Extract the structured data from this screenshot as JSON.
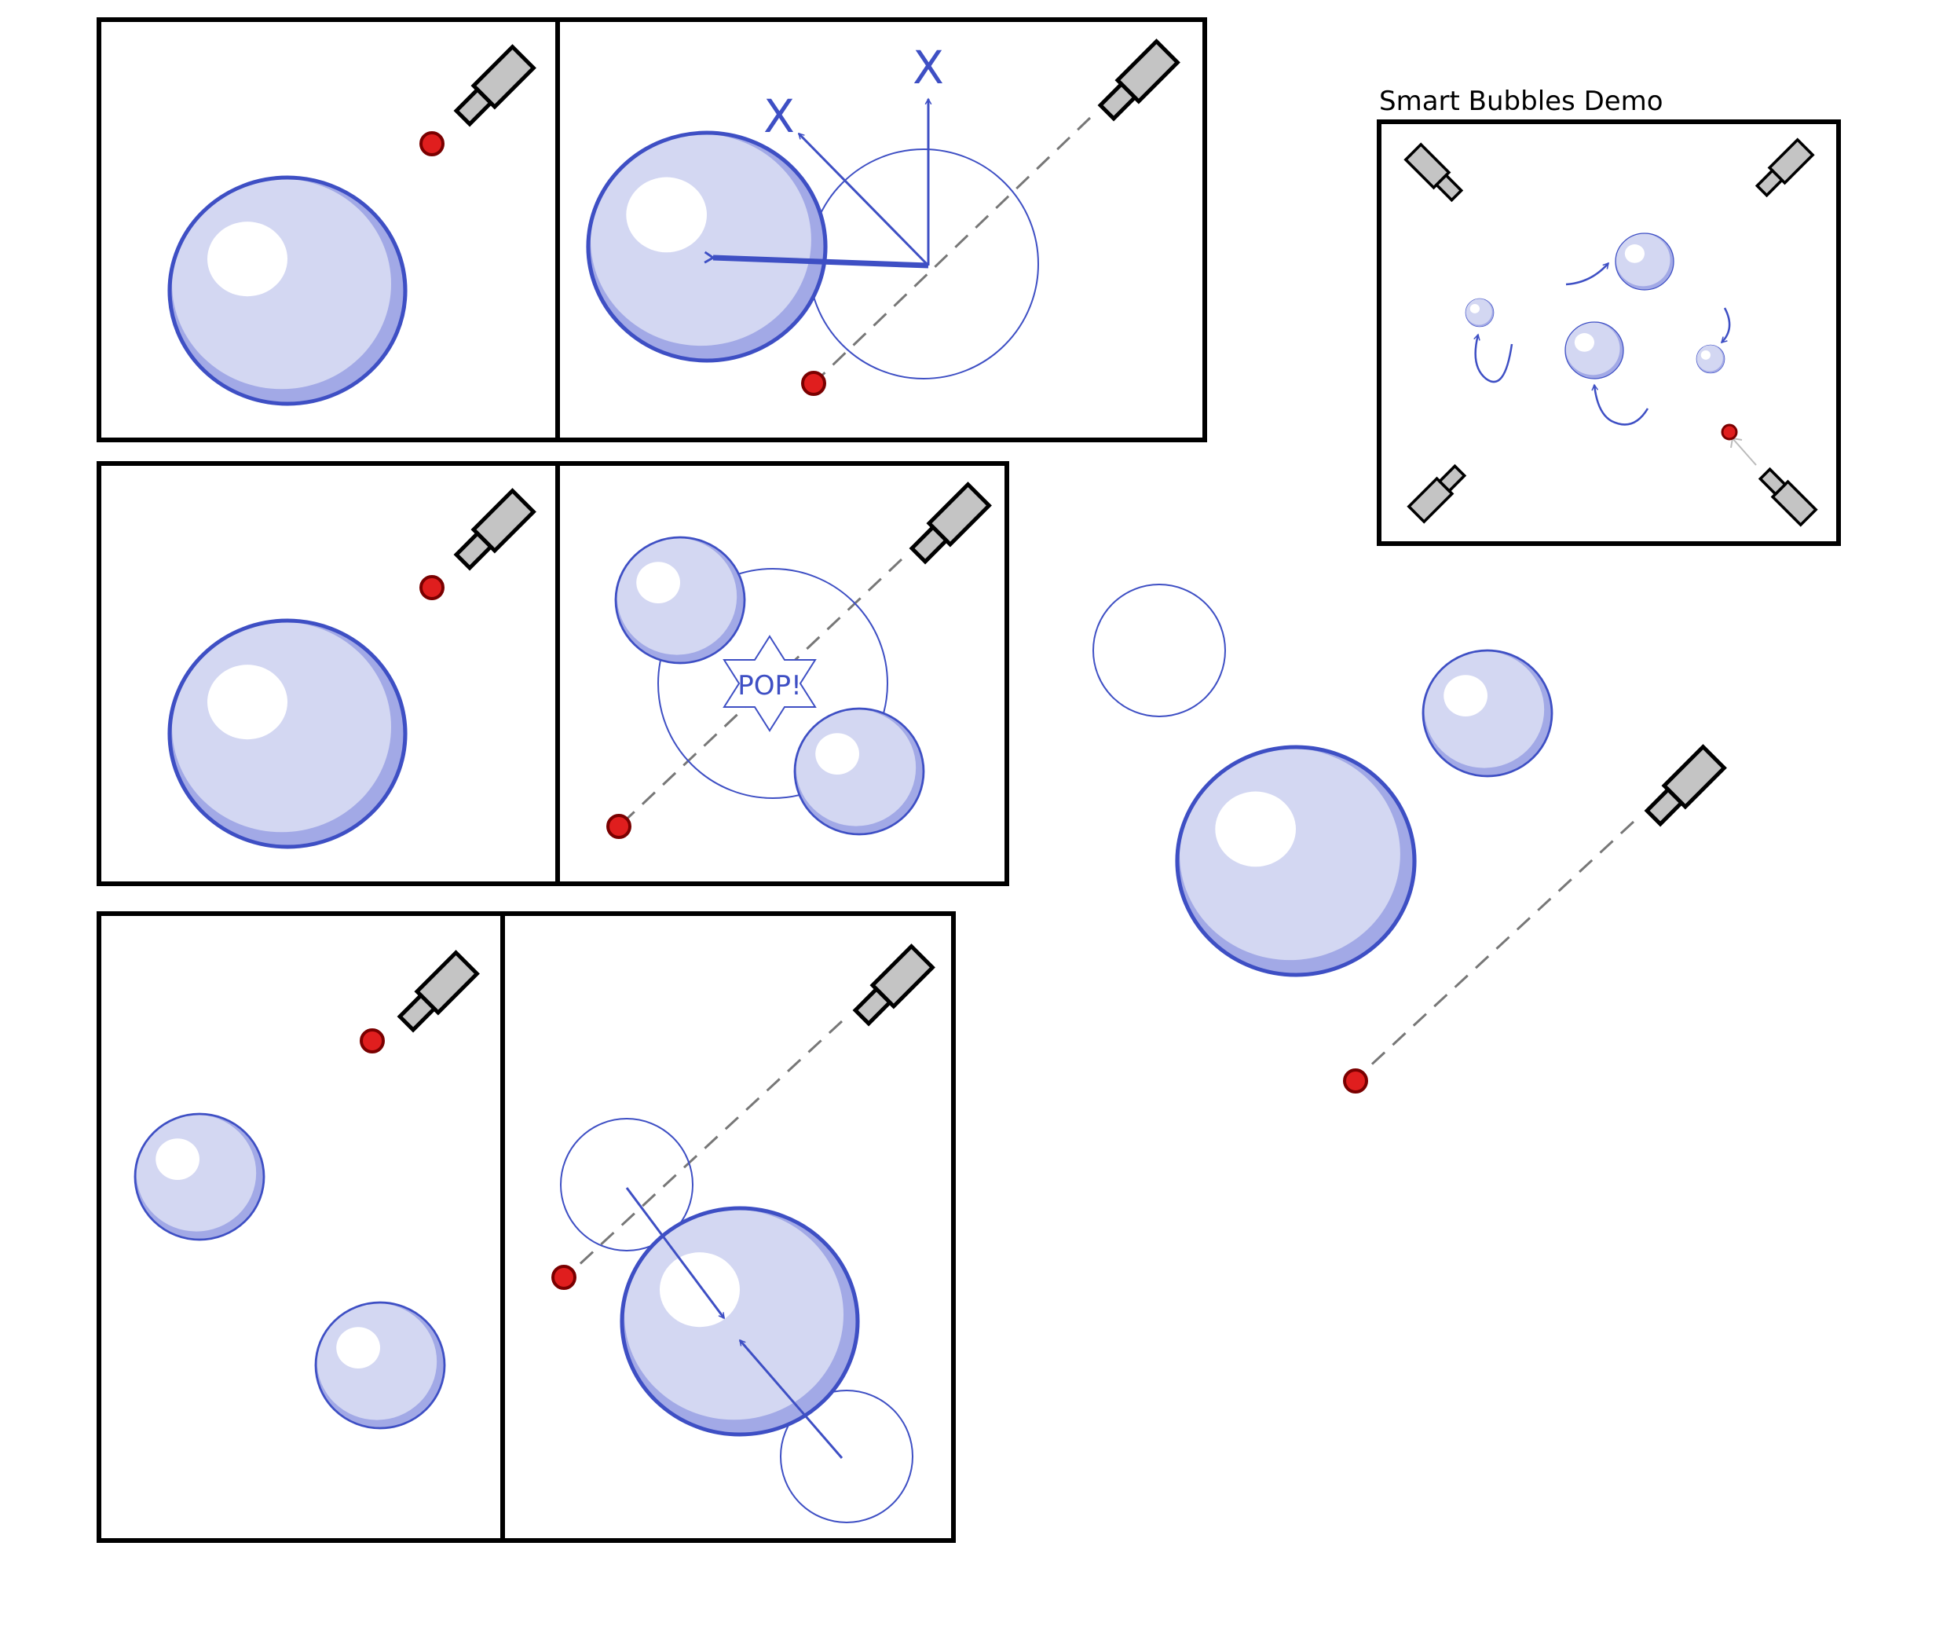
{
  "demo_title": "Smart Bubbles Demo",
  "pop_label": "POP!",
  "axis_label": "X",
  "colors": {
    "bubble_fill": "#d3d7f2",
    "bubble_shade": "#a2a9e6",
    "bubble_stroke": "#3e4fc4",
    "highlight": "#ffffff",
    "arrow": "#3e4fc4",
    "laser_dot": "#e01e1e",
    "laser_dot_stroke": "#7a0000",
    "laser_body": "#c4c4c4",
    "beam": "#777777",
    "frame": "#000000"
  },
  "icons": [
    "laser-pointer-icon",
    "laser-dot-icon",
    "bubble-icon",
    "ghost-bubble-icon",
    "pop-burst-icon",
    "curved-arrow-icon"
  ]
}
